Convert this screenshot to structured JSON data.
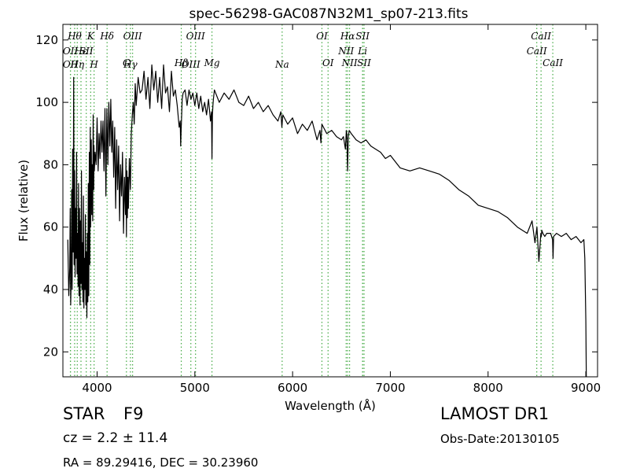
{
  "chart_data": {
    "type": "line",
    "title": "spec-56298-GAC087N32M1_sp07-213.fits",
    "xlabel": "Wavelength (Å)",
    "ylabel": "Flux (relative)",
    "xlim": [
      3650,
      9120
    ],
    "ylim": [
      12,
      125
    ],
    "xticks": [
      4000,
      5000,
      6000,
      7000,
      8000,
      9000
    ],
    "yticks": [
      20,
      40,
      60,
      80,
      100,
      120
    ],
    "grid": false,
    "line_color": "#000000",
    "marker_color": "#44aa44",
    "series": [
      {
        "x": [
          3700,
          3710,
          3720,
          3725,
          3730,
          3735,
          3740,
          3745,
          3750,
          3755,
          3760,
          3765,
          3770,
          3775,
          3780,
          3785,
          3790,
          3795,
          3800,
          3805,
          3810,
          3815,
          3820,
          3825,
          3830,
          3835,
          3840,
          3845,
          3850,
          3855,
          3860,
          3865,
          3870,
          3875,
          3880,
          3885,
          3890,
          3895,
          3900,
          3905,
          3910,
          3915,
          3920,
          3925,
          3930,
          3933,
          3936,
          3940,
          3945,
          3950,
          3955,
          3960,
          3965,
          3968,
          3972,
          3980,
          3990,
          4000,
          4010,
          4020,
          4030,
          4040,
          4050,
          4060,
          4070,
          4080,
          4090,
          4100,
          4110,
          4120,
          4130,
          4140,
          4150,
          4160,
          4170,
          4180,
          4190,
          4200,
          4210,
          4220,
          4230,
          4240,
          4250,
          4260,
          4270,
          4280,
          4290,
          4295,
          4300,
          4305,
          4310,
          4315,
          4320,
          4330,
          4340,
          4350,
          4360,
          4370,
          4380,
          4390,
          4400,
          4420,
          4440,
          4460,
          4480,
          4500,
          4520,
          4540,
          4560,
          4580,
          4600,
          4620,
          4640,
          4660,
          4680,
          4700,
          4720,
          4740,
          4760,
          4780,
          4800,
          4820,
          4840,
          4850,
          4855,
          4861,
          4866,
          4870,
          4880,
          4900,
          4920,
          4940,
          4960,
          4980,
          5000,
          5020,
          5040,
          5060,
          5080,
          5100,
          5120,
          5140,
          5160,
          5170,
          5175,
          5180,
          5185,
          5190,
          5200,
          5250,
          5300,
          5350,
          5400,
          5450,
          5500,
          5550,
          5600,
          5650,
          5700,
          5750,
          5800,
          5850,
          5880,
          5890,
          5900,
          5950,
          6000,
          6050,
          6100,
          6150,
          6200,
          6250,
          6280,
          6290,
          6300,
          6350,
          6400,
          6450,
          6500,
          6520,
          6540,
          6550,
          6555,
          6563,
          6570,
          6580,
          6600,
          6650,
          6700,
          6750,
          6800,
          6850,
          6900,
          6950,
          7000,
          7100,
          7200,
          7300,
          7400,
          7500,
          7600,
          7700,
          7800,
          7900,
          8000,
          8100,
          8200,
          8300,
          8400,
          8450,
          8480,
          8500,
          8520,
          8540,
          8545,
          8550,
          8560,
          8580,
          8600,
          8640,
          8660,
          8665,
          8670,
          8700,
          8750,
          8800,
          8850,
          8900,
          8950,
          8980,
          8990,
          9000,
          9005
        ],
        "y": [
          56,
          38,
          47,
          66,
          35,
          44,
          72,
          40,
          85,
          52,
          108,
          48,
          78,
          44,
          66,
          50,
          84,
          45,
          58,
          41,
          74,
          38,
          66,
          35,
          62,
          42,
          78,
          40,
          55,
          36,
          70,
          34,
          50,
          40,
          64,
          35,
          52,
          31,
          58,
          36,
          74,
          38,
          84,
          48,
          92,
          60,
          74,
          88,
          64,
          80,
          62,
          96,
          72,
          86,
          78,
          84,
          80,
          95,
          78,
          90,
          82,
          94,
          84,
          94,
          78,
          98,
          70,
          98,
          80,
          100,
          86,
          101,
          84,
          94,
          76,
          92,
          66,
          88,
          72,
          86,
          62,
          80,
          70,
          84,
          58,
          76,
          64,
          82,
          57,
          78,
          63,
          76,
          66,
          82,
          72,
          90,
          96,
          100,
          93,
          106,
          99,
          108,
          103,
          104,
          110,
          101,
          108,
          98,
          112,
          104,
          110,
          100,
          108,
          98,
          112,
          103,
          105,
          97,
          110,
          102,
          104,
          99,
          92,
          94,
          86,
          92,
          97,
          101,
          103,
          104,
          99,
          104,
          101,
          103,
          99,
          103,
          98,
          102,
          97,
          100,
          96,
          101,
          94,
          97,
          82,
          96,
          99,
          101,
          104,
          100,
          103,
          101,
          104,
          100,
          99,
          102,
          98,
          100,
          97,
          99,
          96,
          94,
          97,
          92,
          96,
          93,
          95,
          90,
          93,
          91,
          94,
          88,
          91,
          87,
          93,
          90,
          91,
          89,
          88,
          89,
          85,
          91,
          90,
          78,
          89,
          91,
          90,
          88,
          87,
          88,
          86,
          85,
          84,
          82,
          83,
          79,
          78,
          79,
          78,
          77,
          75,
          72,
          70,
          67,
          66,
          65,
          63,
          60,
          58,
          62,
          55,
          60,
          49,
          58,
          57,
          59,
          58,
          57,
          58,
          58,
          56,
          50,
          57,
          58,
          57,
          58,
          56,
          57,
          55,
          56,
          50,
          30,
          12
        ]
      }
    ],
    "lines": [
      {
        "x": 3727,
        "label": "OII",
        "row": 2
      },
      {
        "x": 3727,
        "label": "OII",
        "row": 1
      },
      {
        "x": 3770,
        "label": "Hθ",
        "row": 0
      },
      {
        "x": 3797,
        "label": "Hη",
        "row": 2
      },
      {
        "x": 3835,
        "label": "Hε",
        "row": 1
      },
      {
        "x": 3889,
        "label": "SII",
        "row": 1
      },
      {
        "x": 3934,
        "label": "K",
        "row": 0
      },
      {
        "x": 3969,
        "label": "H",
        "row": 2
      },
      {
        "x": 4102,
        "label": "Hδ",
        "row": 0
      },
      {
        "x": 4300,
        "label": "G",
        "row": 3
      },
      {
        "x": 4341,
        "label": "Hγ",
        "row": 2
      },
      {
        "x": 4363,
        "label": "OIII",
        "row": 0
      },
      {
        "x": 4861,
        "label": "Hβ",
        "row": 3
      },
      {
        "x": 4959,
        "label": "OIII",
        "row": 2
      },
      {
        "x": 5007,
        "label": "OIII",
        "row": 0
      },
      {
        "x": 5175,
        "label": "Mg",
        "row": 3
      },
      {
        "x": 5893,
        "label": "Na",
        "row": 2
      },
      {
        "x": 6300,
        "label": "OI",
        "row": 0
      },
      {
        "x": 6363,
        "label": "OI",
        "row": 3
      },
      {
        "x": 6548,
        "label": "NII",
        "row": 1
      },
      {
        "x": 6563,
        "label": "Hα",
        "row": 0
      },
      {
        "x": 6583,
        "label": "NII",
        "row": 3
      },
      {
        "x": 6716,
        "label": "SII",
        "row": 0
      },
      {
        "x": 6716,
        "label": "Li",
        "row": 1
      },
      {
        "x": 6731,
        "label": "SII",
        "row": 3
      },
      {
        "x": 8498,
        "label": "CaII",
        "row": 1
      },
      {
        "x": 8542,
        "label": "CaII",
        "row": 0
      },
      {
        "x": 8662,
        "label": "CaII",
        "row": 3
      }
    ]
  },
  "info": {
    "class_label": "STAR",
    "subclass": "F9",
    "redshift": "cz = 2.2 ± 11.4",
    "coords": "RA = 89.29416, DEC = 30.23960",
    "survey": "LAMOST DR1",
    "obs_date": "Obs-Date:20130105"
  }
}
